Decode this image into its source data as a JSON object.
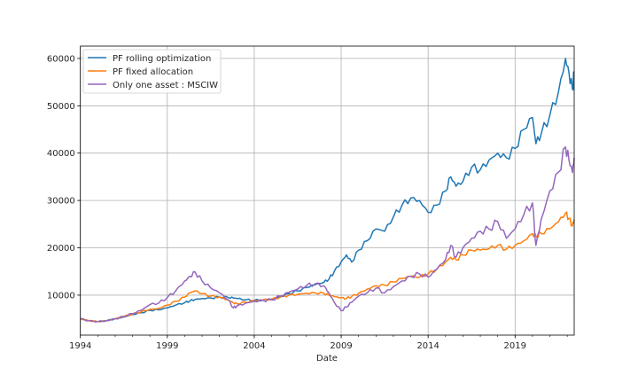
{
  "chart_data": {
    "type": "line",
    "title": "",
    "xlabel": "Date",
    "ylabel": "",
    "xlim": [
      1994.0,
      2022.4
    ],
    "ylim": [
      1560,
      62600
    ],
    "grid": true,
    "legend_position": "upper left",
    "x_ticks": [
      1994,
      1999,
      2004,
      2009,
      2014,
      2019
    ],
    "x_tick_labels": [
      "1994",
      "1999",
      "2004",
      "2009",
      "2014",
      "2019"
    ],
    "y_ticks": [
      10000,
      20000,
      30000,
      40000,
      50000,
      60000
    ],
    "y_tick_labels": [
      "10000",
      "20000",
      "30000",
      "40000",
      "50000",
      "60000"
    ],
    "x": [
      1994.0,
      1994.5,
      1995.0,
      1995.5,
      1996.0,
      1996.5,
      1997.0,
      1997.5,
      1998.0,
      1998.5,
      1999.0,
      1999.5,
      2000.0,
      2000.3,
      2000.6,
      2001.0,
      2001.5,
      2002.0,
      2002.5,
      2002.8,
      2003.0,
      2003.5,
      2004.0,
      2004.5,
      2005.0,
      2005.5,
      2006.0,
      2006.5,
      2007.0,
      2007.5,
      2008.0,
      2008.3,
      2008.6,
      2009.0,
      2009.3,
      2009.6,
      2010.0,
      2010.5,
      2011.0,
      2011.5,
      2012.0,
      2012.5,
      2013.0,
      2013.5,
      2014.0,
      2014.5,
      2015.0,
      2015.3,
      2015.6,
      2016.0,
      2016.5,
      2017.0,
      2017.5,
      2018.0,
      2018.5,
      2019.0,
      2019.5,
      2020.0,
      2020.2,
      2020.5,
      2021.0,
      2021.5,
      2021.9,
      2022.1,
      2022.3,
      2022.4
    ],
    "series": [
      {
        "name": "PF rolling optimization",
        "color": "#1f77b4",
        "values": [
          5000,
          4600,
          4400,
          4600,
          5000,
          5400,
          5900,
          6300,
          6800,
          6900,
          7300,
          7900,
          8400,
          8800,
          9100,
          9300,
          9400,
          9600,
          9500,
          9400,
          9300,
          9000,
          8900,
          9000,
          9200,
          9700,
          10300,
          10900,
          11600,
          12200,
          12700,
          13400,
          15000,
          17000,
          18500,
          17000,
          19500,
          21500,
          24000,
          23500,
          26500,
          29000,
          30500,
          30000,
          27500,
          29000,
          32000,
          35000,
          33000,
          34000,
          37000,
          36500,
          38500,
          40000,
          39000,
          41000,
          45000,
          47500,
          42000,
          44000,
          48000,
          53000,
          60000,
          57000,
          53500,
          57000
        ]
      },
      {
        "name": "PF fixed allocation",
        "color": "#ff7f0e",
        "values": [
          5000,
          4600,
          4400,
          4600,
          5000,
          5500,
          6000,
          6500,
          7000,
          7200,
          7900,
          8700,
          9600,
          10500,
          10900,
          10300,
          9800,
          9600,
          9000,
          8400,
          8200,
          8500,
          8800,
          9000,
          9100,
          9600,
          10000,
          10200,
          10400,
          10500,
          10400,
          10000,
          9700,
          9400,
          9300,
          9700,
          10400,
          11300,
          12000,
          12100,
          12800,
          13500,
          14000,
          13800,
          14500,
          15500,
          17000,
          18000,
          17500,
          18500,
          19500,
          19500,
          19800,
          20500,
          19700,
          20500,
          21500,
          23000,
          22500,
          23000,
          24000,
          25500,
          27300,
          26200,
          24700,
          26000
        ]
      },
      {
        "name": "Only one asset : MSCIW",
        "color": "#9467bd",
        "values": [
          5000,
          4600,
          4400,
          4600,
          5000,
          5500,
          6100,
          6800,
          8000,
          8300,
          9500,
          11000,
          13000,
          14000,
          14900,
          13000,
          11500,
          10500,
          9000,
          7300,
          7700,
          8300,
          8700,
          8900,
          9000,
          9800,
          10600,
          11300,
          12000,
          12400,
          12000,
          10500,
          8500,
          6700,
          7500,
          8500,
          9800,
          10500,
          11500,
          10500,
          11800,
          13000,
          14000,
          14500,
          13800,
          15500,
          17500,
          20500,
          18000,
          20000,
          22000,
          23500,
          24000,
          25500,
          22000,
          24000,
          27000,
          29500,
          20500,
          26000,
          32000,
          36000,
          41300,
          38500,
          35900,
          39000
        ]
      }
    ]
  }
}
